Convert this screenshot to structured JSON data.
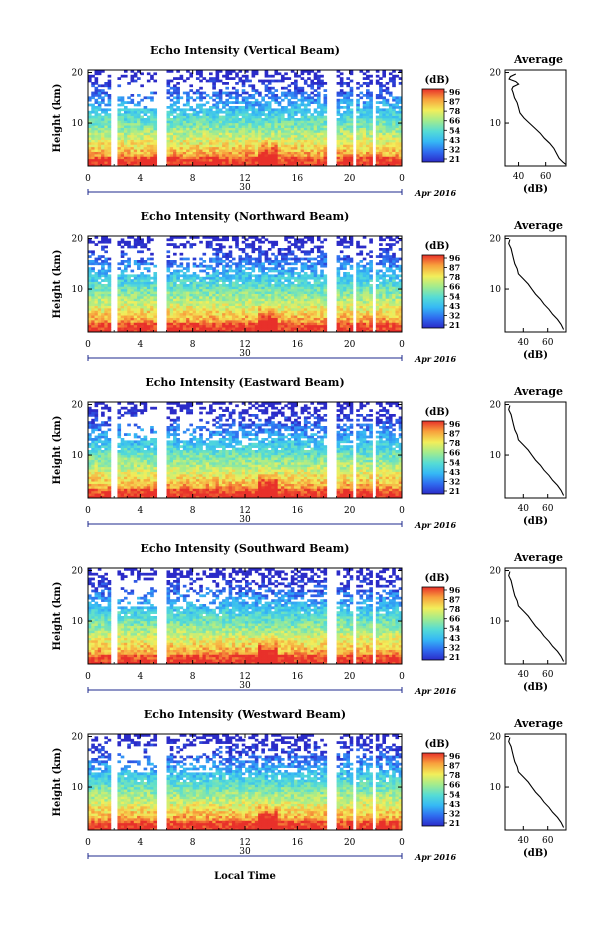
{
  "figure": {
    "xlabel": "Local Time",
    "date_day": "30",
    "date_month": "Apr 2016",
    "avg_title": "Average",
    "avg_xlabel": "(dB)",
    "colorbar_unit": "(dB)",
    "colorbar_ticks": [
      "96",
      "87",
      "78",
      "66",
      "54",
      "43",
      "32",
      "21"
    ]
  },
  "chart_data": [
    {
      "type": "heatmap",
      "title": "Echo Intensity (Vertical Beam)",
      "ylabel": "Height (km)",
      "x_ticks": [
        "0",
        "4",
        "8",
        "12",
        "16",
        "20",
        "0"
      ],
      "y_ticks": [
        "20",
        "10"
      ],
      "xlim": [
        0,
        24
      ],
      "ylim": [
        1.5,
        20.5
      ],
      "colorbar_ticks": [
        "96",
        "87",
        "78",
        "66",
        "54",
        "43",
        "32",
        "21"
      ],
      "gaps_hours": [
        [
          1.7,
          2.3
        ],
        [
          5.3,
          6.1
        ],
        [
          18.2,
          18.9
        ],
        [
          20.3,
          20.6
        ],
        [
          21.7,
          22.1
        ]
      ],
      "average_profile": {
        "title": "Average",
        "xlabel": "(dB)",
        "x_ticks": [
          "40",
          "60"
        ],
        "y_ticks": [
          "20",
          "10"
        ],
        "xlim": [
          30,
          75
        ],
        "points": [
          [
            38,
            19.7
          ],
          [
            34,
            19.2
          ],
          [
            33,
            18.7
          ],
          [
            38,
            18.2
          ],
          [
            40,
            17.7
          ],
          [
            36,
            17.2
          ],
          [
            35,
            16.7
          ],
          [
            36,
            16.0
          ],
          [
            37,
            15.0
          ],
          [
            39,
            14.0
          ],
          [
            40,
            13.0
          ],
          [
            41,
            12.0
          ],
          [
            44,
            11.0
          ],
          [
            48,
            10.0
          ],
          [
            52,
            9.0
          ],
          [
            56,
            8.0
          ],
          [
            59,
            7.0
          ],
          [
            63,
            6.0
          ],
          [
            66,
            5.0
          ],
          [
            68,
            4.0
          ],
          [
            70,
            3.0
          ],
          [
            73,
            2.2
          ],
          [
            75,
            1.8
          ]
        ]
      }
    },
    {
      "type": "heatmap",
      "title": "Echo Intensity (Northward Beam)",
      "ylabel": "Height (km)",
      "x_ticks": [
        "0",
        "4",
        "8",
        "12",
        "16",
        "20",
        "0"
      ],
      "y_ticks": [
        "20",
        "10"
      ],
      "xlim": [
        0,
        24
      ],
      "ylim": [
        1.5,
        20.5
      ],
      "colorbar_ticks": [
        "96",
        "87",
        "78",
        "66",
        "54",
        "43",
        "32",
        "21"
      ],
      "gaps_hours": [
        [
          1.7,
          2.3
        ],
        [
          5.3,
          6.1
        ],
        [
          18.2,
          18.9
        ],
        [
          20.3,
          20.6
        ],
        [
          21.7,
          22.1
        ]
      ],
      "average_profile": {
        "title": "Average",
        "xlabel": "(dB)",
        "x_ticks": [
          "40",
          "60"
        ],
        "y_ticks": [
          "20",
          "10"
        ],
        "xlim": [
          25,
          75
        ],
        "points": [
          [
            29,
            19.8
          ],
          [
            28,
            19.0
          ],
          [
            30,
            18.0
          ],
          [
            31,
            17.0
          ],
          [
            32,
            16.0
          ],
          [
            33,
            15.0
          ],
          [
            35,
            14.0
          ],
          [
            36,
            13.0
          ],
          [
            40,
            12.0
          ],
          [
            44,
            11.0
          ],
          [
            47,
            10.0
          ],
          [
            50,
            9.0
          ],
          [
            54,
            8.0
          ],
          [
            57,
            7.0
          ],
          [
            61,
            6.0
          ],
          [
            64,
            5.0
          ],
          [
            68,
            4.0
          ],
          [
            71,
            3.0
          ],
          [
            73,
            2.0
          ]
        ]
      }
    },
    {
      "type": "heatmap",
      "title": "Echo Intensity (Eastward Beam)",
      "ylabel": "Height (km)",
      "x_ticks": [
        "0",
        "4",
        "8",
        "12",
        "16",
        "20",
        "0"
      ],
      "y_ticks": [
        "20",
        "10"
      ],
      "xlim": [
        0,
        24
      ],
      "ylim": [
        1.5,
        20.5
      ],
      "colorbar_ticks": [
        "96",
        "87",
        "78",
        "66",
        "54",
        "43",
        "32",
        "21"
      ],
      "gaps_hours": [
        [
          1.7,
          2.3
        ],
        [
          5.3,
          6.1
        ],
        [
          18.2,
          18.9
        ],
        [
          20.3,
          20.6
        ],
        [
          21.7,
          22.1
        ]
      ],
      "average_profile": {
        "title": "Average",
        "xlabel": "(dB)",
        "x_ticks": [
          "40",
          "60"
        ],
        "y_ticks": [
          "20",
          "10"
        ],
        "xlim": [
          25,
          75
        ],
        "points": [
          [
            29,
            19.8
          ],
          [
            28,
            19.0
          ],
          [
            30,
            18.0
          ],
          [
            31,
            17.0
          ],
          [
            32,
            16.0
          ],
          [
            33,
            15.0
          ],
          [
            35,
            14.0
          ],
          [
            36,
            13.0
          ],
          [
            40,
            12.0
          ],
          [
            44,
            11.0
          ],
          [
            47,
            10.0
          ],
          [
            50,
            9.0
          ],
          [
            54,
            8.0
          ],
          [
            57,
            7.0
          ],
          [
            61,
            6.0
          ],
          [
            64,
            5.0
          ],
          [
            68,
            4.0
          ],
          [
            71,
            3.0
          ],
          [
            73,
            2.0
          ]
        ]
      }
    },
    {
      "type": "heatmap",
      "title": "Echo Intensity (Southward Beam)",
      "ylabel": "Height (km)",
      "x_ticks": [
        "0",
        "4",
        "8",
        "12",
        "16",
        "20",
        "0"
      ],
      "y_ticks": [
        "20",
        "10"
      ],
      "xlim": [
        0,
        24
      ],
      "ylim": [
        1.5,
        20.5
      ],
      "colorbar_ticks": [
        "96",
        "87",
        "78",
        "66",
        "54",
        "43",
        "32",
        "21"
      ],
      "gaps_hours": [
        [
          1.7,
          2.3
        ],
        [
          5.3,
          6.1
        ],
        [
          18.2,
          18.9
        ],
        [
          20.3,
          20.6
        ],
        [
          21.7,
          22.1
        ]
      ],
      "average_profile": {
        "title": "Average",
        "xlabel": "(dB)",
        "x_ticks": [
          "40",
          "60"
        ],
        "y_ticks": [
          "20",
          "10"
        ],
        "xlim": [
          25,
          75
        ],
        "points": [
          [
            29,
            19.8
          ],
          [
            28,
            19.0
          ],
          [
            30,
            18.0
          ],
          [
            31,
            17.0
          ],
          [
            32,
            16.0
          ],
          [
            33,
            15.0
          ],
          [
            35,
            14.0
          ],
          [
            36,
            13.0
          ],
          [
            40,
            12.0
          ],
          [
            44,
            11.0
          ],
          [
            47,
            10.0
          ],
          [
            50,
            9.0
          ],
          [
            54,
            8.0
          ],
          [
            57,
            7.0
          ],
          [
            61,
            6.0
          ],
          [
            64,
            5.0
          ],
          [
            68,
            4.0
          ],
          [
            71,
            3.0
          ],
          [
            73,
            2.0
          ]
        ]
      }
    },
    {
      "type": "heatmap",
      "title": "Echo Intensity (Westward Beam)",
      "ylabel": "Height (km)",
      "x_ticks": [
        "0",
        "4",
        "8",
        "12",
        "16",
        "20",
        "0"
      ],
      "y_ticks": [
        "20",
        "10"
      ],
      "xlim": [
        0,
        24
      ],
      "ylim": [
        1.5,
        20.5
      ],
      "colorbar_ticks": [
        "96",
        "87",
        "78",
        "66",
        "54",
        "43",
        "32",
        "21"
      ],
      "gaps_hours": [
        [
          1.7,
          2.3
        ],
        [
          5.3,
          6.1
        ],
        [
          18.2,
          18.9
        ],
        [
          20.3,
          20.6
        ],
        [
          21.7,
          22.1
        ]
      ],
      "average_profile": {
        "title": "Average",
        "xlabel": "(dB)",
        "x_ticks": [
          "40",
          "60"
        ],
        "y_ticks": [
          "20",
          "10"
        ],
        "xlim": [
          25,
          75
        ],
        "points": [
          [
            29,
            19.8
          ],
          [
            28,
            19.0
          ],
          [
            30,
            18.0
          ],
          [
            31,
            17.0
          ],
          [
            32,
            16.0
          ],
          [
            33,
            15.0
          ],
          [
            35,
            14.0
          ],
          [
            36,
            13.0
          ],
          [
            40,
            12.0
          ],
          [
            44,
            11.0
          ],
          [
            47,
            10.0
          ],
          [
            50,
            9.0
          ],
          [
            54,
            8.0
          ],
          [
            57,
            7.0
          ],
          [
            61,
            6.0
          ],
          [
            64,
            5.0
          ],
          [
            68,
            4.0
          ],
          [
            71,
            3.0
          ],
          [
            73,
            2.0
          ]
        ]
      }
    }
  ]
}
